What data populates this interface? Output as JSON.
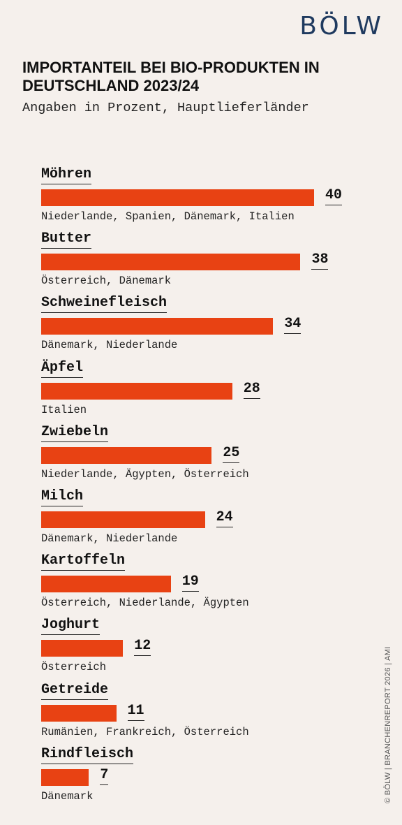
{
  "brand": {
    "logo": "BÖLW"
  },
  "source": "© BÖLW | BRANCHENREPORT 2026 | AMI",
  "chart_data": {
    "type": "bar",
    "orientation": "horizontal",
    "title": "IMPORTANTEIL BEI BIO-PRODUKTEN IN DEUTSCHLAND 2023/24",
    "subtitle": "Angaben in Prozent, Hauptlieferländer",
    "xlim": [
      0,
      40
    ],
    "grid": false,
    "bar_color": "#e84213",
    "categories": [
      "Möhren",
      "Butter",
      "Schweinefleisch",
      "Äpfel",
      "Zwiebeln",
      "Milch",
      "Kartoffeln",
      "Joghurt",
      "Getreide",
      "Rindfleisch"
    ],
    "values": [
      40,
      38,
      34,
      28,
      25,
      24,
      19,
      12,
      11,
      7
    ],
    "annotations": [
      "Niederlande, Spanien, Dänemark, Italien",
      "Österreich, Dänemark",
      "Dänemark, Niederlande",
      "Italien",
      "Niederlande, Ägypten, Österreich",
      "Dänemark, Niederlande",
      "Österreich, Niederlande, Ägypten",
      "Österreich",
      "Rumänien, Frankreich, Österreich",
      "Dänemark"
    ]
  }
}
